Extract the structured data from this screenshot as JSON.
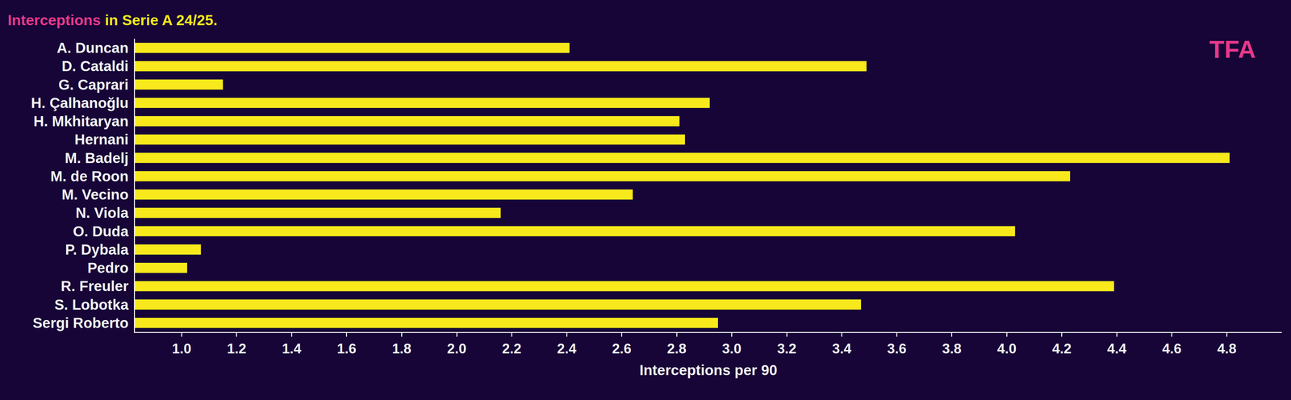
{
  "chart_data": {
    "type": "bar",
    "orientation": "horizontal",
    "title": "Interceptions in Serie A 24/25.",
    "annotations": [
      "TFA"
    ],
    "x_label": "Interceptions per 90",
    "categories": [
      "A. Duncan",
      "D. Cataldi",
      "G. Caprari",
      "H. Çalhanoğlu",
      "H. Mkhitaryan",
      "Hernani",
      "M. Badelj",
      "M. de Roon",
      "M. Vecino",
      "N. Viola",
      "O. Duda",
      "P. Dybala",
      "Pedro",
      "R. Freuler",
      "S. Lobotka",
      "Sergi Roberto"
    ],
    "values": [
      2.41,
      3.49,
      1.15,
      2.92,
      2.81,
      2.83,
      4.81,
      4.23,
      2.64,
      2.16,
      4.03,
      1.07,
      1.02,
      4.39,
      3.47,
      2.95
    ],
    "color": "#f7e91b",
    "xlim": [
      0.83,
      5.0
    ],
    "xticks": [
      {
        "value": 1,
        "label": "1.0"
      },
      1.2,
      1.4,
      1.6,
      1.8,
      {
        "value": 2,
        "label": "2.0"
      },
      2.2,
      2.4,
      2.6,
      2.8,
      {
        "value": 3,
        "label": "3.0"
      },
      3.2,
      3.4,
      3.6,
      3.8,
      {
        "value": 4,
        "label": "4.0"
      },
      4.2,
      4.4,
      4.6,
      4.8
    ],
    "grid": false,
    "data_labels": false
  }
}
